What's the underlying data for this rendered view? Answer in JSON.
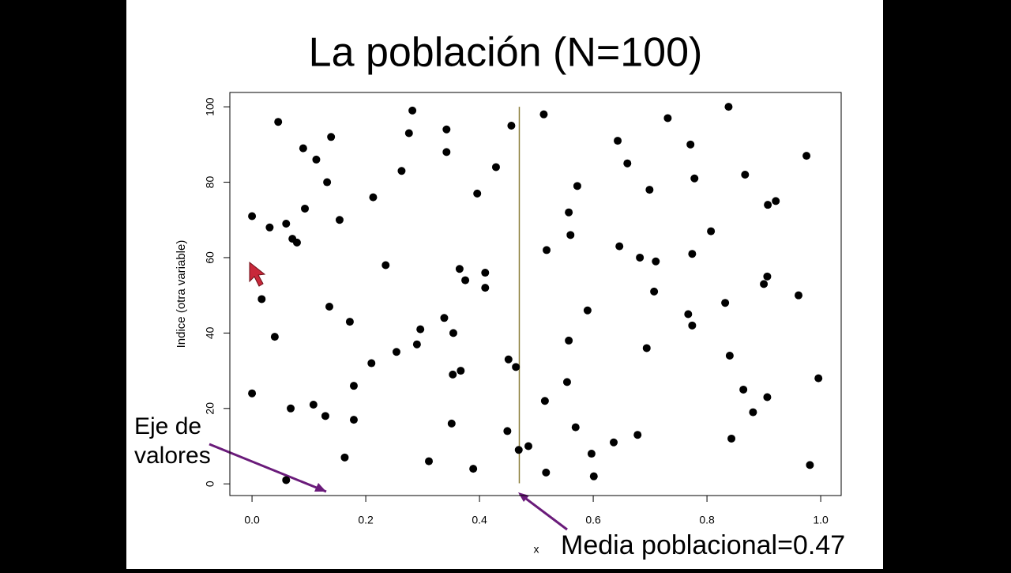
{
  "chart_data": {
    "type": "scatter",
    "title": "La población (N=100)",
    "x_label": "x",
    "y_label": "Indice (otra variable)",
    "x": [
      0.06,
      0.601,
      0.517,
      0.389,
      0.981,
      0.311,
      0.163,
      0.597,
      0.469,
      0.486,
      0.636,
      0.843,
      0.678,
      0.449,
      0.569,
      0.351,
      0.179,
      0.129,
      0.881,
      0.068,
      0.108,
      0.515,
      0.906,
      0.0,
      0.864,
      0.179,
      0.554,
      0.996,
      0.353,
      0.367,
      0.464,
      0.21,
      0.451,
      0.84,
      0.254,
      0.694,
      0.29,
      0.557,
      0.04,
      0.354,
      0.296,
      0.774,
      0.172,
      0.338,
      0.767,
      0.59,
      0.136,
      0.832,
      0.017,
      0.961,
      0.707,
      0.41,
      0.9,
      0.375,
      0.906,
      0.41,
      0.365,
      0.235,
      0.71,
      0.682,
      0.774,
      0.518,
      0.646,
      0.079,
      0.071,
      0.56,
      0.807,
      0.031,
      0.06,
      0.154,
      0.0,
      0.557,
      0.093,
      0.907,
      0.921,
      0.213,
      0.396,
      0.699,
      0.572,
      0.132,
      0.778,
      0.867,
      0.263,
      0.429,
      0.66,
      0.113,
      0.975,
      0.342,
      0.09,
      0.771,
      0.643,
      0.139,
      0.276,
      0.342,
      0.456,
      0.046,
      0.731,
      0.513,
      0.282,
      0.838
    ],
    "values": [
      1,
      2,
      3,
      4,
      5,
      6,
      7,
      8,
      9,
      10,
      11,
      12,
      13,
      14,
      15,
      16,
      17,
      18,
      19,
      20,
      21,
      22,
      23,
      24,
      25,
      26,
      27,
      28,
      29,
      30,
      31,
      32,
      33,
      34,
      35,
      36,
      37,
      38,
      39,
      40,
      41,
      42,
      43,
      44,
      45,
      46,
      47,
      48,
      49,
      50,
      51,
      52,
      53,
      54,
      55,
      56,
      57,
      58,
      59,
      60,
      61,
      62,
      63,
      64,
      65,
      66,
      67,
      68,
      69,
      70,
      71,
      72,
      73,
      74,
      75,
      76,
      77,
      78,
      79,
      80,
      81,
      82,
      83,
      84,
      85,
      86,
      87,
      88,
      89,
      90,
      91,
      92,
      93,
      94,
      95,
      96,
      97,
      98,
      99,
      100
    ],
    "color": "#000000",
    "mean": 0.47,
    "mean_color": "#8b7d3a",
    "xlim": [
      -0.039,
      1.036
    ],
    "ylim": [
      -3.1,
      103.8
    ],
    "xticks": [
      {
        "value": 0,
        "label": "0.0"
      },
      0.2,
      0.4,
      0.6,
      0.8,
      {
        "value": 1,
        "label": "1.0"
      }
    ],
    "yticks": [
      0,
      20,
      40,
      60,
      80,
      100
    ],
    "annotations": [
      "Eje de\nvalores",
      "Media poblacional=0.47"
    ]
  }
}
